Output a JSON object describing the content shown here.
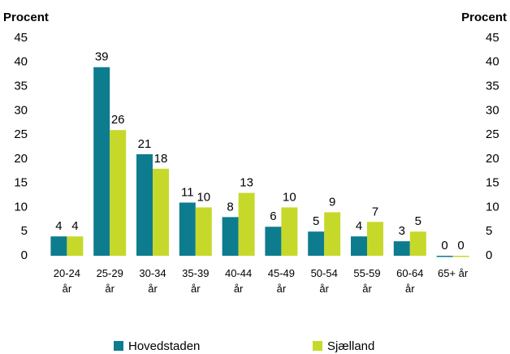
{
  "chart_data": {
    "type": "bar",
    "y_label_left": "Procent",
    "y_label_right": "Procent",
    "categories": [
      "20-24 år",
      "25-29 år",
      "30-34 år",
      "35-39 år",
      "40-44 år",
      "45-49 år",
      "50-54 år",
      "55-59 år",
      "60-64 år",
      "65+ år"
    ],
    "series": [
      {
        "name": "Hovedstaden",
        "color": "#0e7c8f",
        "values": [
          4,
          39,
          21,
          11,
          8,
          6,
          5,
          4,
          3,
          0
        ]
      },
      {
        "name": "Sjælland",
        "color": "#c6d92b",
        "values": [
          4,
          26,
          18,
          10,
          13,
          10,
          9,
          7,
          5,
          0
        ]
      }
    ],
    "ylim": [
      0,
      45
    ],
    "yticks": [
      0,
      5,
      10,
      15,
      20,
      25,
      30,
      35,
      40,
      45
    ],
    "y2lim": [
      0,
      45
    ],
    "y2ticks": [
      0,
      5,
      10,
      15,
      20,
      25,
      30,
      35,
      40,
      45
    ],
    "grid": false,
    "legend": "bottom"
  }
}
